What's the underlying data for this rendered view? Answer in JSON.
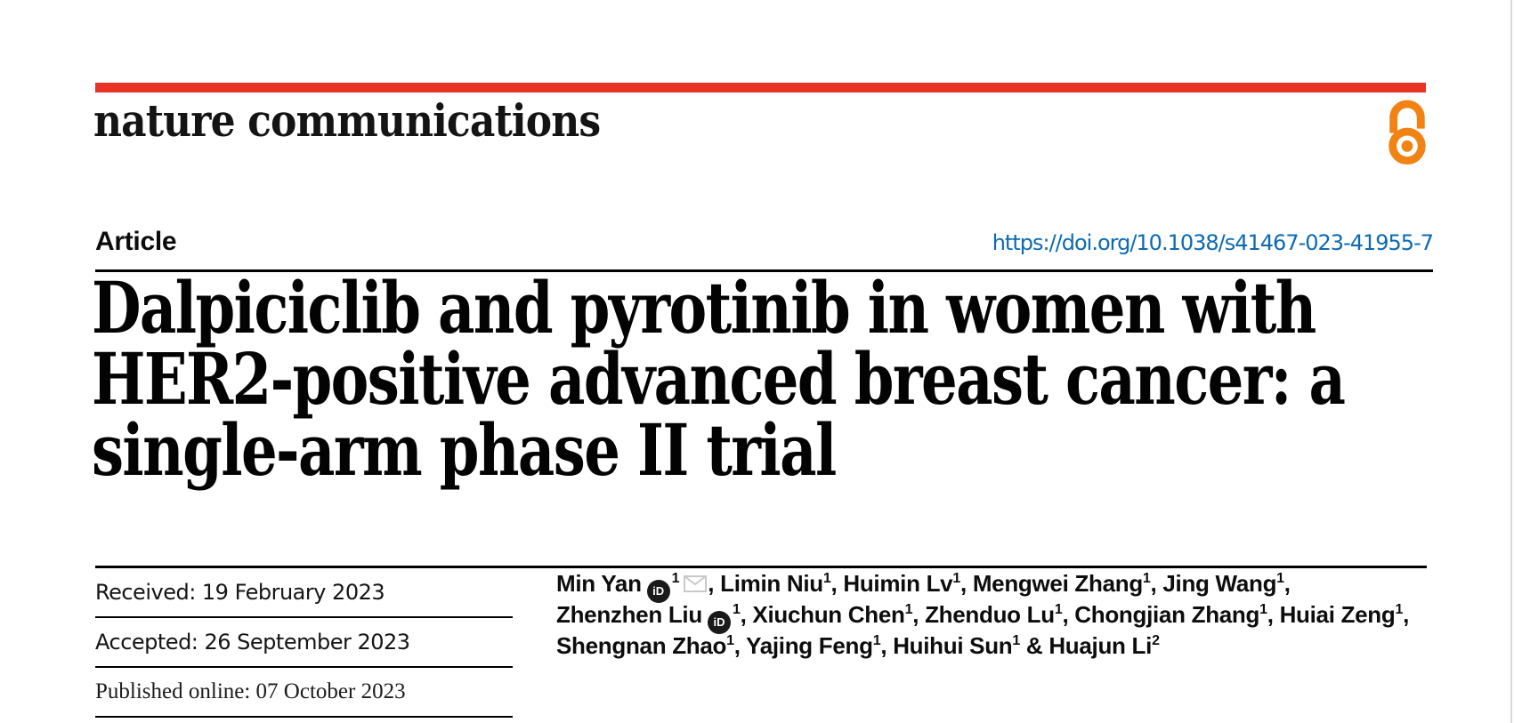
{
  "brand": {
    "name": "nature communications"
  },
  "colors": {
    "accent_bar": "#e63323",
    "open_access_orange": "#f08314",
    "link_blue": "#0c6ab2",
    "envelope_gray": "#c9c9c9"
  },
  "article": {
    "label": "Article",
    "doi": "https://doi.org/10.1038/s41467-023-41955-7"
  },
  "title": {
    "lines": [
      "Dalpiciclib and pyrotinib in women with",
      "HER2-positive advanced breast cancer: a",
      "single-arm phase II trial"
    ]
  },
  "dates": {
    "received": "Received: 19 February 2023",
    "accepted": "Accepted: 26 September 2023",
    "published": "Published online: 07 October 2023"
  },
  "icons": {
    "open_access": "open-access-icon",
    "orcid": "orcid-icon",
    "orcid_label": "iD",
    "email": "email-envelope-icon"
  },
  "authors": {
    "lines": [
      [
        {
          "name": "Min Yan",
          "orcid": true,
          "sup": "1",
          "email": true,
          "after": ", "
        },
        {
          "name": "Limin Niu",
          "sup": "1",
          "after": ", "
        },
        {
          "name": "Huimin Lv",
          "sup": "1",
          "after": ", "
        },
        {
          "name": "Mengwei Zhang",
          "sup": "1",
          "after": ", "
        },
        {
          "name": "Jing Wang",
          "sup": "1",
          "after": ","
        }
      ],
      [
        {
          "name": "Zhenzhen Liu",
          "orcid": true,
          "sup": "1",
          "after": ", "
        },
        {
          "name": "Xiuchun Chen",
          "sup": "1",
          "after": ", "
        },
        {
          "name": "Zhenduo Lu",
          "sup": "1",
          "after": ", "
        },
        {
          "name": "Chongjian Zhang",
          "sup": "1",
          "after": ", "
        },
        {
          "name": "Huiai Zeng",
          "sup": "1",
          "after": ","
        }
      ],
      [
        {
          "name": "Shengnan Zhao",
          "sup": "1",
          "after": ", "
        },
        {
          "name": "Yajing Feng",
          "sup": "1",
          "after": ", "
        },
        {
          "name": "Huihui Sun",
          "sup": "1",
          "after": " & "
        },
        {
          "name": "Huajun Li",
          "sup": "2",
          "after": ""
        }
      ]
    ]
  }
}
